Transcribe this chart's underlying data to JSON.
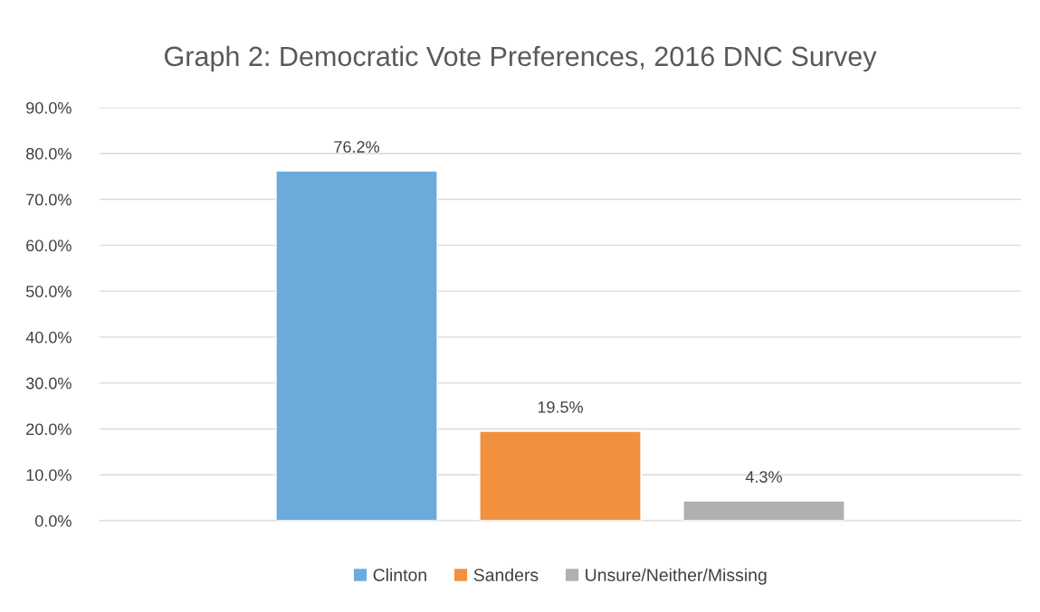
{
  "chart_data": {
    "type": "bar",
    "title": "Graph 2: Democratic Vote Preferences, 2016 DNC Survey",
    "categories": [
      null
    ],
    "series": [
      {
        "name": "Clinton",
        "color": "#6aabdc",
        "values": [
          76.2
        ],
        "value_labels": [
          "76.2%"
        ]
      },
      {
        "name": "Sanders",
        "color": "#f1913f",
        "values": [
          19.5
        ],
        "value_labels": [
          "19.5%"
        ]
      },
      {
        "name": "Unsure/Neither/Missing",
        "color": "#b0b0b0",
        "values": [
          4.3
        ],
        "value_labels": [
          "4.3%"
        ]
      }
    ],
    "ylim": [
      0,
      90
    ],
    "yticks": [
      {
        "value": 0,
        "label": "0.0%"
      },
      {
        "value": 10,
        "label": "10.0%"
      },
      {
        "value": 20,
        "label": "20.0%"
      },
      {
        "value": 30,
        "label": "30.0%"
      },
      {
        "value": 40,
        "label": "40.0%"
      },
      {
        "value": 50,
        "label": "50.0%"
      },
      {
        "value": 60,
        "label": "60.0%"
      },
      {
        "value": 70,
        "label": "70.0%"
      },
      {
        "value": 80,
        "label": "80.0%"
      },
      {
        "value": 90,
        "label": "90.0%"
      }
    ],
    "grid": "y",
    "legend": "bottom",
    "tick_labels": "y"
  }
}
